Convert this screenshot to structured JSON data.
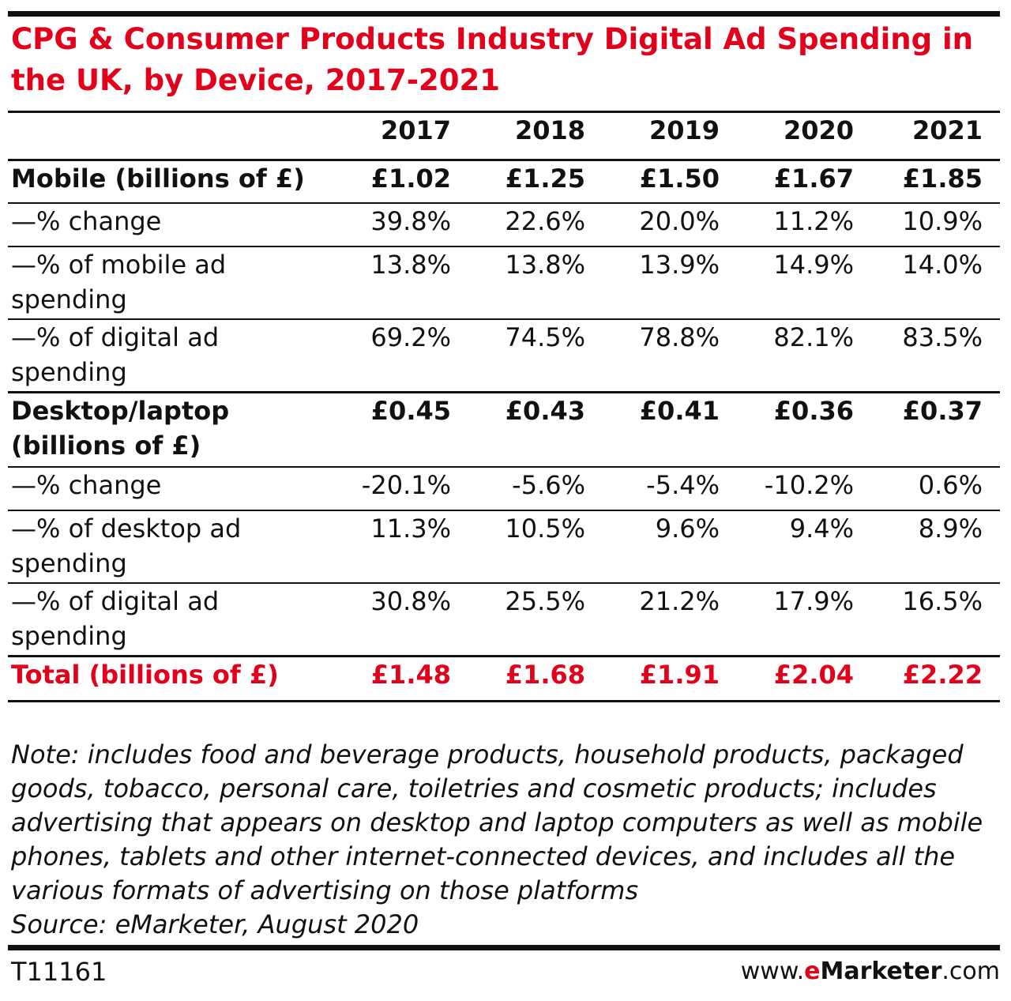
{
  "chart_data": {
    "type": "table",
    "title": "CPG & Consumer Products Industry Digital Ad Spending in the UK, by Device, 2017-2021",
    "columns": [
      "2017",
      "2018",
      "2019",
      "2020",
      "2021"
    ],
    "rows": [
      {
        "label": "Mobile (billions of £)",
        "values": [
          "£1.02",
          "£1.25",
          "£1.50",
          "£1.67",
          "£1.85"
        ]
      },
      {
        "label": "—% change",
        "values": [
          "39.8%",
          "22.6%",
          "20.0%",
          "11.2%",
          "10.9%"
        ]
      },
      {
        "label": "—% of mobile ad spending",
        "values": [
          "13.8%",
          "13.8%",
          "13.9%",
          "14.9%",
          "14.0%"
        ]
      },
      {
        "label": "—% of digital ad spending",
        "values": [
          "69.2%",
          "74.5%",
          "78.8%",
          "82.1%",
          "83.5%"
        ]
      },
      {
        "label": "Desktop/laptop (billions of £)",
        "values": [
          "£0.45",
          "£0.43",
          "£0.41",
          "£0.36",
          "£0.37"
        ]
      },
      {
        "label": "—% change",
        "values": [
          "-20.1%",
          "-5.6%",
          "-5.4%",
          "-10.2%",
          "0.6%"
        ]
      },
      {
        "label": "—% of desktop ad spending",
        "values": [
          "11.3%",
          "10.5%",
          "9.6%",
          "9.4%",
          "8.9%"
        ]
      },
      {
        "label": "—% of digital ad spending",
        "values": [
          "30.8%",
          "25.5%",
          "21.2%",
          "17.9%",
          "16.5%"
        ]
      },
      {
        "label": "Total (billions of £)",
        "values": [
          "£1.48",
          "£1.68",
          "£1.91",
          "£2.04",
          "£2.22"
        ]
      }
    ]
  },
  "note": "Note: includes food and beverage products, household products, packaged goods, tobacco, personal care, toiletries and cosmetic products; includes advertising that appears on desktop and laptop computers as well as mobile phones, tablets and other internet-connected devices, and includes all the various formats of advertising on those platforms",
  "source": "Source: eMarketer, August 2020",
  "footer": {
    "chart_id": "T11161",
    "brand_prefix": "www.",
    "brand_e": "e",
    "brand_name": "Marketer",
    "brand_suffix": ".com"
  },
  "colors": {
    "accent": "#e2001a",
    "text": "#111111",
    "rule": "#111111"
  }
}
